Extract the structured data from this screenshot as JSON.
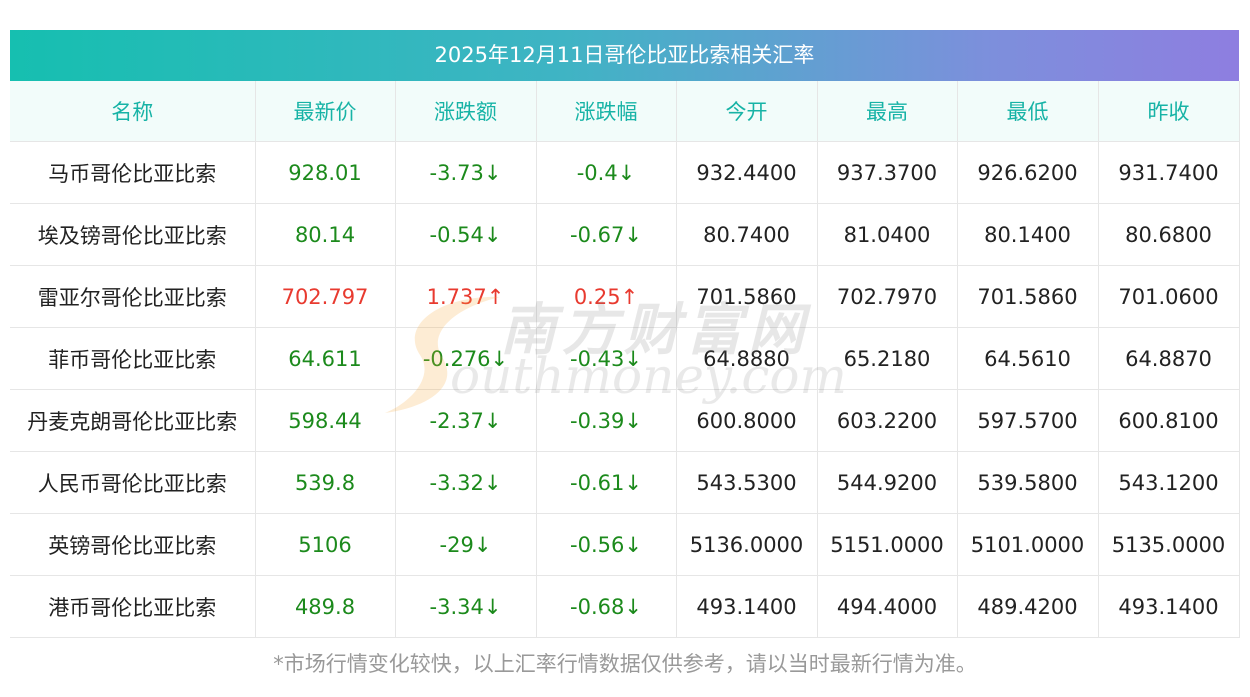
{
  "title": "2025年12月11日哥伦比亚比索相关汇率",
  "columns": [
    "名称",
    "最新价",
    "涨跌额",
    "涨跌幅",
    "今开",
    "最高",
    "最低",
    "昨收"
  ],
  "rows": [
    {
      "name": "马币哥伦比亚比索",
      "latest": "928.01",
      "change": "-3.73↓",
      "pct": "-0.4↓",
      "open": "932.4400",
      "high": "937.3700",
      "low": "926.6200",
      "prev": "931.7400",
      "dir": "down"
    },
    {
      "name": "埃及镑哥伦比亚比索",
      "latest": "80.14",
      "change": "-0.54↓",
      "pct": "-0.67↓",
      "open": "80.7400",
      "high": "81.0400",
      "low": "80.1400",
      "prev": "80.6800",
      "dir": "down"
    },
    {
      "name": "雷亚尔哥伦比亚比索",
      "latest": "702.797",
      "change": "1.737↑",
      "pct": "0.25↑",
      "open": "701.5860",
      "high": "702.7970",
      "low": "701.5860",
      "prev": "701.0600",
      "dir": "up"
    },
    {
      "name": "菲币哥伦比亚比索",
      "latest": "64.611",
      "change": "-0.276↓",
      "pct": "-0.43↓",
      "open": "64.8880",
      "high": "65.2180",
      "low": "64.5610",
      "prev": "64.8870",
      "dir": "down"
    },
    {
      "name": "丹麦克朗哥伦比亚比索",
      "latest": "598.44",
      "change": "-2.37↓",
      "pct": "-0.39↓",
      "open": "600.8000",
      "high": "603.2200",
      "low": "597.5700",
      "prev": "600.8100",
      "dir": "down"
    },
    {
      "name": "人民币哥伦比亚比索",
      "latest": "539.8",
      "change": "-3.32↓",
      "pct": "-0.61↓",
      "open": "543.5300",
      "high": "544.9200",
      "low": "539.5800",
      "prev": "543.1200",
      "dir": "down"
    },
    {
      "name": "英镑哥伦比亚比索",
      "latest": "5106",
      "change": "-29↓",
      "pct": "-0.56↓",
      "open": "5136.0000",
      "high": "5151.0000",
      "low": "5101.0000",
      "prev": "5135.0000",
      "dir": "down"
    },
    {
      "name": "港币哥伦比亚比索",
      "latest": "489.8",
      "change": "-3.34↓",
      "pct": "-0.68↓",
      "open": "493.1400",
      "high": "494.4000",
      "low": "489.4200",
      "prev": "493.1400",
      "dir": "down"
    }
  ],
  "watermark": {
    "cn": "南方财富网",
    "en": "outhmoney.com"
  },
  "footnote": "*市场行情变化较快，以上汇率行情数据仅供参考，请以当时最新行情为准。",
  "colors": {
    "header_text": "#17b3a6",
    "up": "#e83a2f",
    "down": "#1c8a1c",
    "gradient_start": "#16bfb0",
    "gradient_end": "#8e7ee0"
  }
}
